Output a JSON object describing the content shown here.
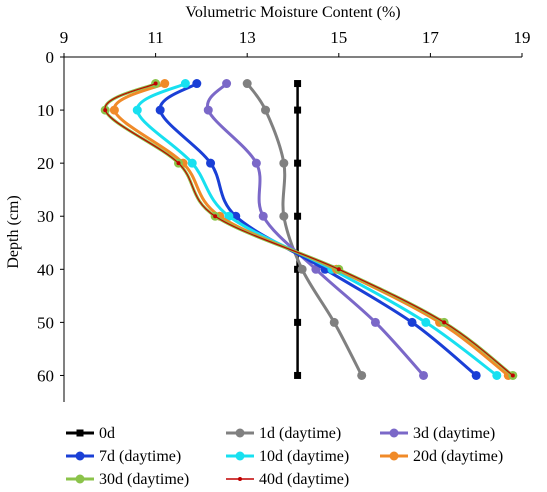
{
  "chart_data": {
    "type": "line",
    "title": "",
    "xlabel": "Volumetric Moisture Content (%)",
    "ylabel": "Depth (cm)",
    "x_axis_position": "top",
    "y_axis_inverted": true,
    "xlim": [
      9,
      19
    ],
    "ylim": [
      0,
      65
    ],
    "xticks": [
      9,
      11,
      13,
      15,
      17,
      19
    ],
    "yticks": [
      0,
      10,
      20,
      30,
      40,
      50,
      60
    ],
    "grid": false,
    "legend_position": "bottom",
    "depths": [
      5,
      10,
      20,
      30,
      40,
      50,
      60
    ],
    "series": [
      {
        "name": "0d",
        "color": "#000000",
        "marker": "square",
        "x": [
          14.1,
          14.1,
          14.1,
          14.1,
          14.1,
          14.1,
          14.1
        ]
      },
      {
        "name": "1d (daytime)",
        "color": "#808080",
        "marker": "circle",
        "x": [
          13.0,
          13.4,
          13.8,
          13.8,
          14.2,
          14.9,
          15.5
        ]
      },
      {
        "name": "3d (daytime)",
        "color": "#7b68c8",
        "marker": "circle",
        "x": [
          12.55,
          12.15,
          13.2,
          13.35,
          14.5,
          15.8,
          16.85
        ]
      },
      {
        "name": "7d (daytime)",
        "color": "#1a3fd6",
        "marker": "circle",
        "x": [
          11.9,
          11.1,
          12.2,
          12.75,
          14.7,
          16.6,
          18.0
        ]
      },
      {
        "name": "10d (daytime)",
        "color": "#18e0f0",
        "marker": "circle",
        "x": [
          11.65,
          10.6,
          11.8,
          12.6,
          14.85,
          16.9,
          18.45
        ]
      },
      {
        "name": "20d (daytime)",
        "color": "#f08a28",
        "marker": "circle",
        "x": [
          11.2,
          10.1,
          11.6,
          12.4,
          14.95,
          17.2,
          18.7
        ]
      },
      {
        "name": "30d (daytime)",
        "color": "#8bc34a",
        "marker": "circle",
        "x": [
          11.0,
          9.9,
          11.5,
          12.3,
          15.0,
          17.3,
          18.8
        ]
      },
      {
        "name": "40d (daytime)",
        "color": "#c00000",
        "marker": "dot",
        "x": [
          11.0,
          9.9,
          11.5,
          12.3,
          15.0,
          17.3,
          18.8
        ]
      }
    ]
  }
}
